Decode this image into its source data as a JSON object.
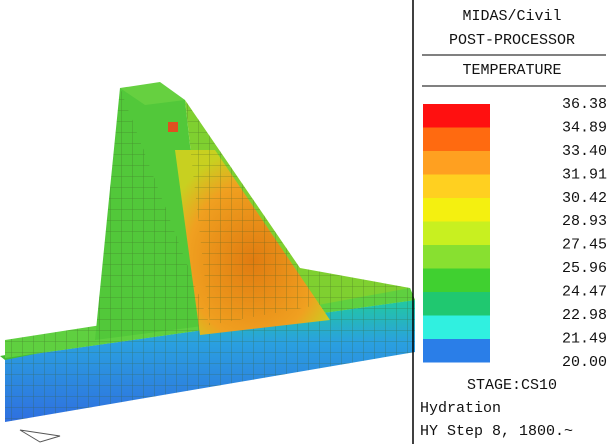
{
  "header": {
    "title": "MIDAS/Civil",
    "subtitle": "POST-PROCESSOR"
  },
  "legend": {
    "title": "TEMPERATURE",
    "labels": [
      "36.38",
      "34.89",
      "33.40",
      "31.91",
      "30.42",
      "28.93",
      "27.45",
      "25.96",
      "24.47",
      "22.98",
      "21.49",
      "20.00"
    ]
  },
  "footer": {
    "stage": "STAGE:CS10",
    "lines": [
      "Hydration",
      "HY Step 8, 1800.~"
    ]
  }
}
